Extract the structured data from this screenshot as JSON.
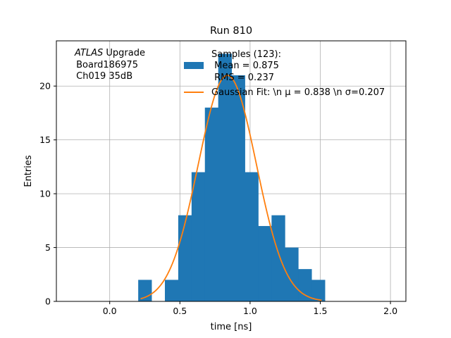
{
  "chart_data": {
    "type": "bar",
    "title": "Run 810",
    "xlabel": "time [ns]",
    "ylabel": "Entries",
    "xlim": [
      -0.38,
      2.11
    ],
    "ylim": [
      0,
      24.2
    ],
    "xticks": [
      0.0,
      0.5,
      1.0,
      1.5,
      2.0
    ],
    "xtick_labels": [
      "0.0",
      "0.5",
      "1.0",
      "1.5",
      "2.0"
    ],
    "yticks": [
      0,
      5,
      10,
      15,
      20
    ],
    "ytick_labels": [
      "0",
      "5",
      "10",
      "15",
      "20"
    ],
    "grid": true,
    "annotation": {
      "italic": "ATLAS",
      "line1_rest": " Upgrade",
      "line2": " Board186975",
      "line3": " Ch019 35dB"
    },
    "legend": {
      "placement": "top-right",
      "samples_title": "Samples (123):",
      "samples_mean": " Mean = 0.875",
      "samples_rms": " RMS = 0.237",
      "fit_label": "Gaussian Fit: \\n $\\mu$ = 0.838 \\n $\\sigma$=0.207",
      "fit_label_display": "Gaussian Fit: \\n μ = 0.838 \\n σ=0.207"
    },
    "histogram": {
      "name": "Samples",
      "color": "#1f77b4",
      "bin_width": 0.095,
      "bins": [
        {
          "x0": 0.203,
          "count": 2
        },
        {
          "x0": 0.298,
          "count": 0
        },
        {
          "x0": 0.393,
          "count": 2
        },
        {
          "x0": 0.488,
          "count": 8
        },
        {
          "x0": 0.583,
          "count": 12
        },
        {
          "x0": 0.678,
          "count": 18
        },
        {
          "x0": 0.773,
          "count": 23
        },
        {
          "x0": 0.868,
          "count": 21
        },
        {
          "x0": 0.963,
          "count": 12
        },
        {
          "x0": 1.058,
          "count": 7
        },
        {
          "x0": 1.153,
          "count": 8
        },
        {
          "x0": 1.248,
          "count": 5
        },
        {
          "x0": 1.343,
          "count": 3
        },
        {
          "x0": 1.438,
          "count": 2
        }
      ]
    },
    "fit": {
      "type": "gaussian",
      "color": "#ff7f0e",
      "mu": 0.838,
      "sigma": 0.207,
      "amplitude": 21.0,
      "x_range": [
        0.22,
        1.51
      ]
    }
  }
}
